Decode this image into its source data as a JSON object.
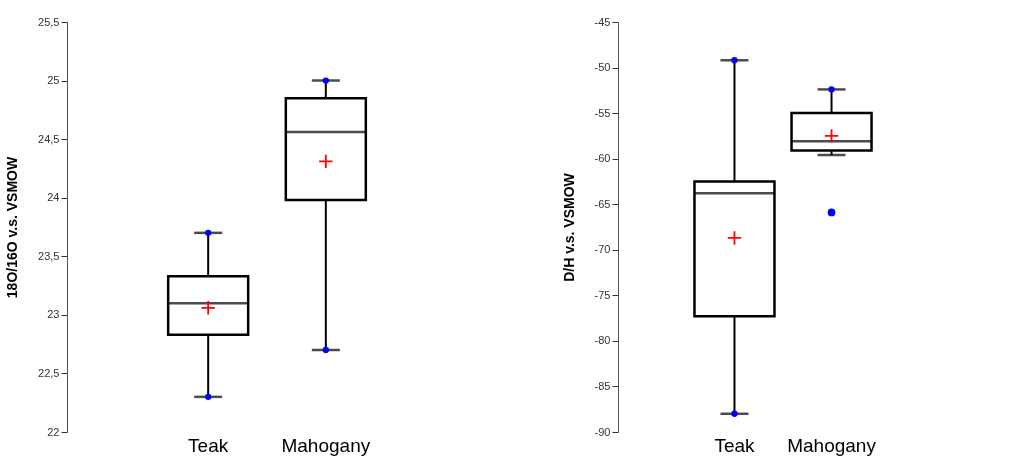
{
  "chart_data": [
    {
      "type": "box",
      "ylabel": "18O/16O v.s. VSMOW",
      "categories": [
        "Teak",
        "Mahogany"
      ],
      "boxes": [
        {
          "low": 22.3,
          "q1": 22.83,
          "median": 23.1,
          "q3": 23.33,
          "high": 23.7,
          "mean": 23.06
        },
        {
          "low": 22.7,
          "q1": 23.98,
          "median": 24.56,
          "q3": 24.85,
          "high": 25.0,
          "mean": 24.31
        }
      ],
      "series": [
        {
          "type": "scatter",
          "color": "#0000ff",
          "x": [
            "Teak",
            "Teak",
            "Mahogany",
            "Mahogany"
          ],
          "values": [
            22.3,
            23.7,
            22.7,
            25.0
          ]
        }
      ],
      "ylim": [
        22,
        25.5
      ],
      "yticks": [
        22,
        {
          "value": 22.5,
          "label": "22,5"
        },
        23,
        {
          "value": 23.5,
          "label": "23,5"
        },
        24,
        {
          "value": 24.5,
          "label": "24,5"
        },
        25,
        {
          "value": 25.5,
          "label": "25,5"
        }
      ]
    },
    {
      "type": "box",
      "ylabel": "D/H v.s. VSMOW",
      "categories": [
        "Teak",
        "Mahogany"
      ],
      "boxes": [
        {
          "low": -88.0,
          "q1": -77.3,
          "median": -63.8,
          "q3": -62.5,
          "high": -49.2,
          "mean": -68.7
        },
        {
          "low": -59.6,
          "q1": -59.1,
          "median": -58.1,
          "q3": -55.0,
          "high": -52.4,
          "mean": -57.5,
          "outliers": [
            -65.9
          ]
        }
      ],
      "series": [
        {
          "type": "scatter",
          "color": "#0000ff",
          "x": [
            "Teak",
            "Teak",
            "Mahogany"
          ],
          "values": [
            -88.0,
            -49.2,
            -52.4
          ]
        }
      ],
      "ylim": [
        -90,
        -45
      ],
      "yticks": [
        -90,
        -85,
        -80,
        -75,
        -70,
        -65,
        -60,
        -55,
        -50,
        -45
      ]
    }
  ]
}
